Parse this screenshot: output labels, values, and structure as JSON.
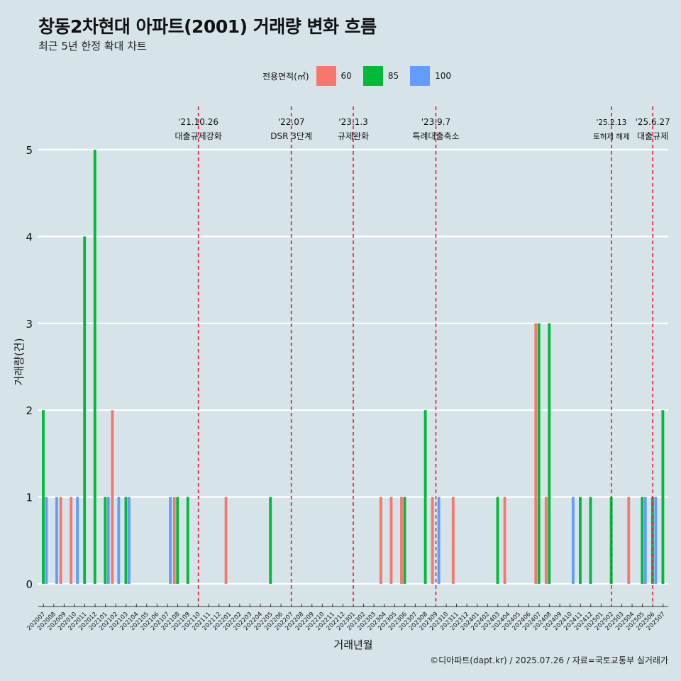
{
  "header": {
    "title": "창동2차현대 아파트(2001) 거래량 변화 흐름",
    "subtitle": "최근 5년 한정 확대 차트"
  },
  "legend": {
    "title": "전용면적(㎡)",
    "items": [
      {
        "label": "60",
        "color": "#f8766d"
      },
      {
        "label": "85",
        "color": "#00ba38"
      },
      {
        "label": "100",
        "color": "#619cff"
      }
    ]
  },
  "caption": "©디아파트(dapt.kr) / 2025.07.26 / 자료=국토교통부 실거래가",
  "chart_data": {
    "type": "bar",
    "xlabel": "거래년월",
    "ylabel": "거래량(건)",
    "ylim": [
      0,
      5
    ],
    "yticks": [
      0,
      1,
      2,
      3,
      4,
      5
    ],
    "grid": "horizontal",
    "legend_position": "top",
    "categories": [
      "202007",
      "202008",
      "202009",
      "202010",
      "202011",
      "202012",
      "202101",
      "202102",
      "202103",
      "202104",
      "202105",
      "202106",
      "202107",
      "202108",
      "202109",
      "202110",
      "202111",
      "202112",
      "202201",
      "202202",
      "202203",
      "202204",
      "202205",
      "202206",
      "202207",
      "202208",
      "202209",
      "202210",
      "202211",
      "202212",
      "202301",
      "202302",
      "202303",
      "202304",
      "202305",
      "202306",
      "202307",
      "202308",
      "202309",
      "202310",
      "202311",
      "202312",
      "202401",
      "202402",
      "202403",
      "202404",
      "202405",
      "202406",
      "202407",
      "202408",
      "202409",
      "202410",
      "202411",
      "202412",
      "202501",
      "202502",
      "202503",
      "202504",
      "202505",
      "202506",
      "202507"
    ],
    "series": [
      {
        "name": "60",
        "color": "#f8766d",
        "values": {
          "202009": 1,
          "202010": 1,
          "202102": 2,
          "202108": 1,
          "202201": 1,
          "202304": 1,
          "202305": 1,
          "202306": 1,
          "202309": 1,
          "202311": 1,
          "202404": 1,
          "202407": 3,
          "202408": 1,
          "202504": 1
        }
      },
      {
        "name": "85",
        "color": "#00ba38",
        "values": {
          "202007": 2,
          "202011": 4,
          "202012": 5,
          "202101": 1,
          "202103": 1,
          "202108": 1,
          "202109": 1,
          "202205": 1,
          "202306": 1,
          "202308": 2,
          "202403": 1,
          "202407": 3,
          "202408": 3,
          "202411": 1,
          "202412": 1,
          "202502": 1,
          "202505": 1,
          "202506": 1,
          "202507": 2
        }
      },
      {
        "name": "100",
        "color": "#619cff",
        "values": {
          "202007": 1,
          "202008": 1,
          "202010": 1,
          "202101": 1,
          "202102": 1,
          "202103": 1,
          "202107": 1,
          "202309": 1,
          "202410": 1,
          "202505": 1,
          "202506": 1
        }
      }
    ],
    "annotations": [
      {
        "month": "202110",
        "date": "'21.10.26",
        "text": "대출규제강화"
      },
      {
        "month": "202207",
        "date": "'22.07",
        "text": "DSR 3단계"
      },
      {
        "month": "202301",
        "date": "'23.1.3",
        "text": "규제완화"
      },
      {
        "month": "202309",
        "date": "'23.9.7",
        "text": "특례대출축소"
      },
      {
        "month": "202502",
        "date": "'25.2.13",
        "text": "토허제 해제"
      },
      {
        "month": "202506",
        "date": "'25.6.27",
        "text": "대출규제"
      }
    ]
  }
}
